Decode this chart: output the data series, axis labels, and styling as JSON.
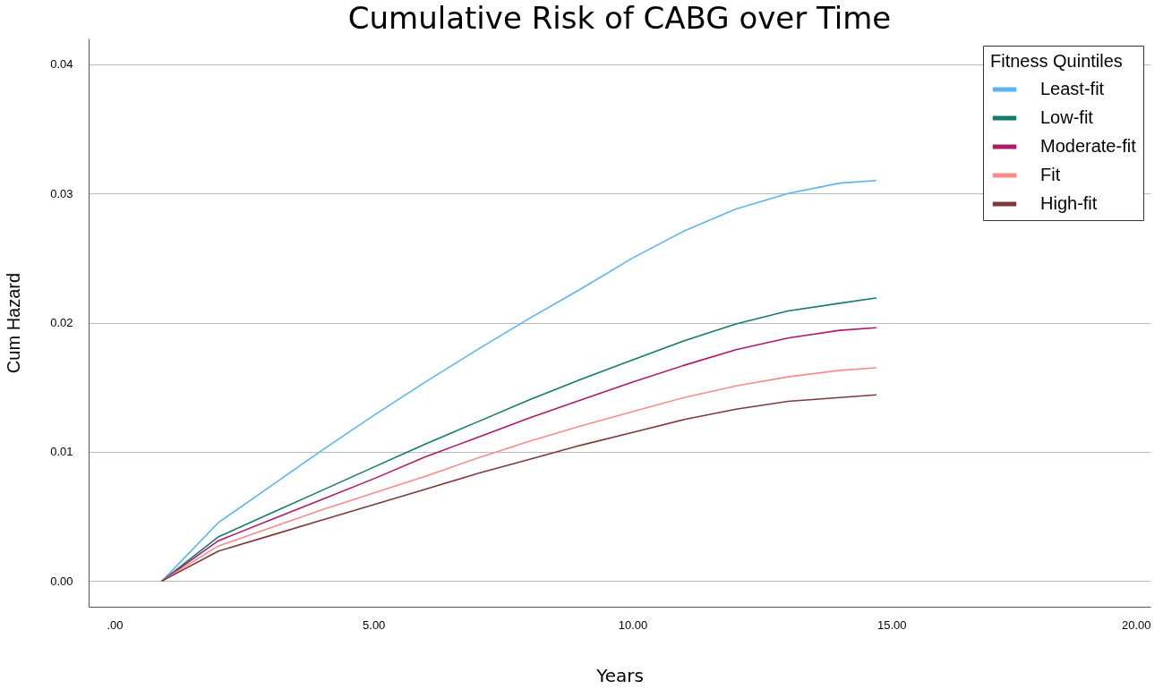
{
  "chart_data": {
    "type": "line",
    "title": "Cumulative Risk of CABG over Time",
    "xlabel": "Years",
    "ylabel": "Cum Hazard",
    "legend_title": "Fitness Quintiles",
    "x": [
      0.92,
      2,
      3,
      4,
      5,
      6,
      7,
      8,
      9,
      10,
      11,
      12,
      13,
      14,
      14.7
    ],
    "series": [
      {
        "name": "Least-fit",
        "color": "#5ab4f0",
        "values": [
          0,
          0.0045,
          0.0073,
          0.0101,
          0.0128,
          0.0154,
          0.0179,
          0.0203,
          0.0226,
          0.025,
          0.0271,
          0.0288,
          0.03,
          0.0308,
          0.031
        ]
      },
      {
        "name": "Low-fit",
        "color": "#137a6e",
        "values": [
          0,
          0.0034,
          0.0052,
          0.007,
          0.0088,
          0.0106,
          0.0123,
          0.014,
          0.0156,
          0.0171,
          0.0186,
          0.0199,
          0.0209,
          0.0215,
          0.0219
        ]
      },
      {
        "name": "Moderate-fit",
        "color": "#b0186a",
        "values": [
          0,
          0.0031,
          0.0047,
          0.0063,
          0.0079,
          0.0096,
          0.0111,
          0.0126,
          0.014,
          0.0154,
          0.0167,
          0.0179,
          0.0188,
          0.0194,
          0.0196
        ]
      },
      {
        "name": "Fit",
        "color": "#f98b8b",
        "values": [
          0,
          0.0027,
          0.0041,
          0.0055,
          0.0068,
          0.0081,
          0.0095,
          0.0108,
          0.012,
          0.0131,
          0.0142,
          0.0151,
          0.0158,
          0.0163,
          0.0165
        ]
      },
      {
        "name": "High-fit",
        "color": "#7d3a3a",
        "values": [
          0,
          0.0023,
          0.0035,
          0.0047,
          0.0059,
          0.0071,
          0.0083,
          0.0094,
          0.0105,
          0.0115,
          0.0125,
          0.0133,
          0.0139,
          0.0142,
          0.0144
        ]
      }
    ],
    "xlim": [
      -0.5,
      20
    ],
    "xticks": [
      {
        "value": 0,
        "label": ".00"
      },
      {
        "value": 5,
        "label": "5.00"
      },
      {
        "value": 10,
        "label": "10.00"
      },
      {
        "value": 15,
        "label": "15.00"
      },
      {
        "value": 20,
        "label": "20.00"
      }
    ],
    "ylim": [
      -0.002,
      0.042
    ],
    "yticks": [
      {
        "value": 0,
        "label": "0.00"
      },
      0.01,
      0.02,
      0.03,
      0.04
    ],
    "grid": "y",
    "legend": "top right",
    "marker": "none",
    "line_style": "solid"
  }
}
